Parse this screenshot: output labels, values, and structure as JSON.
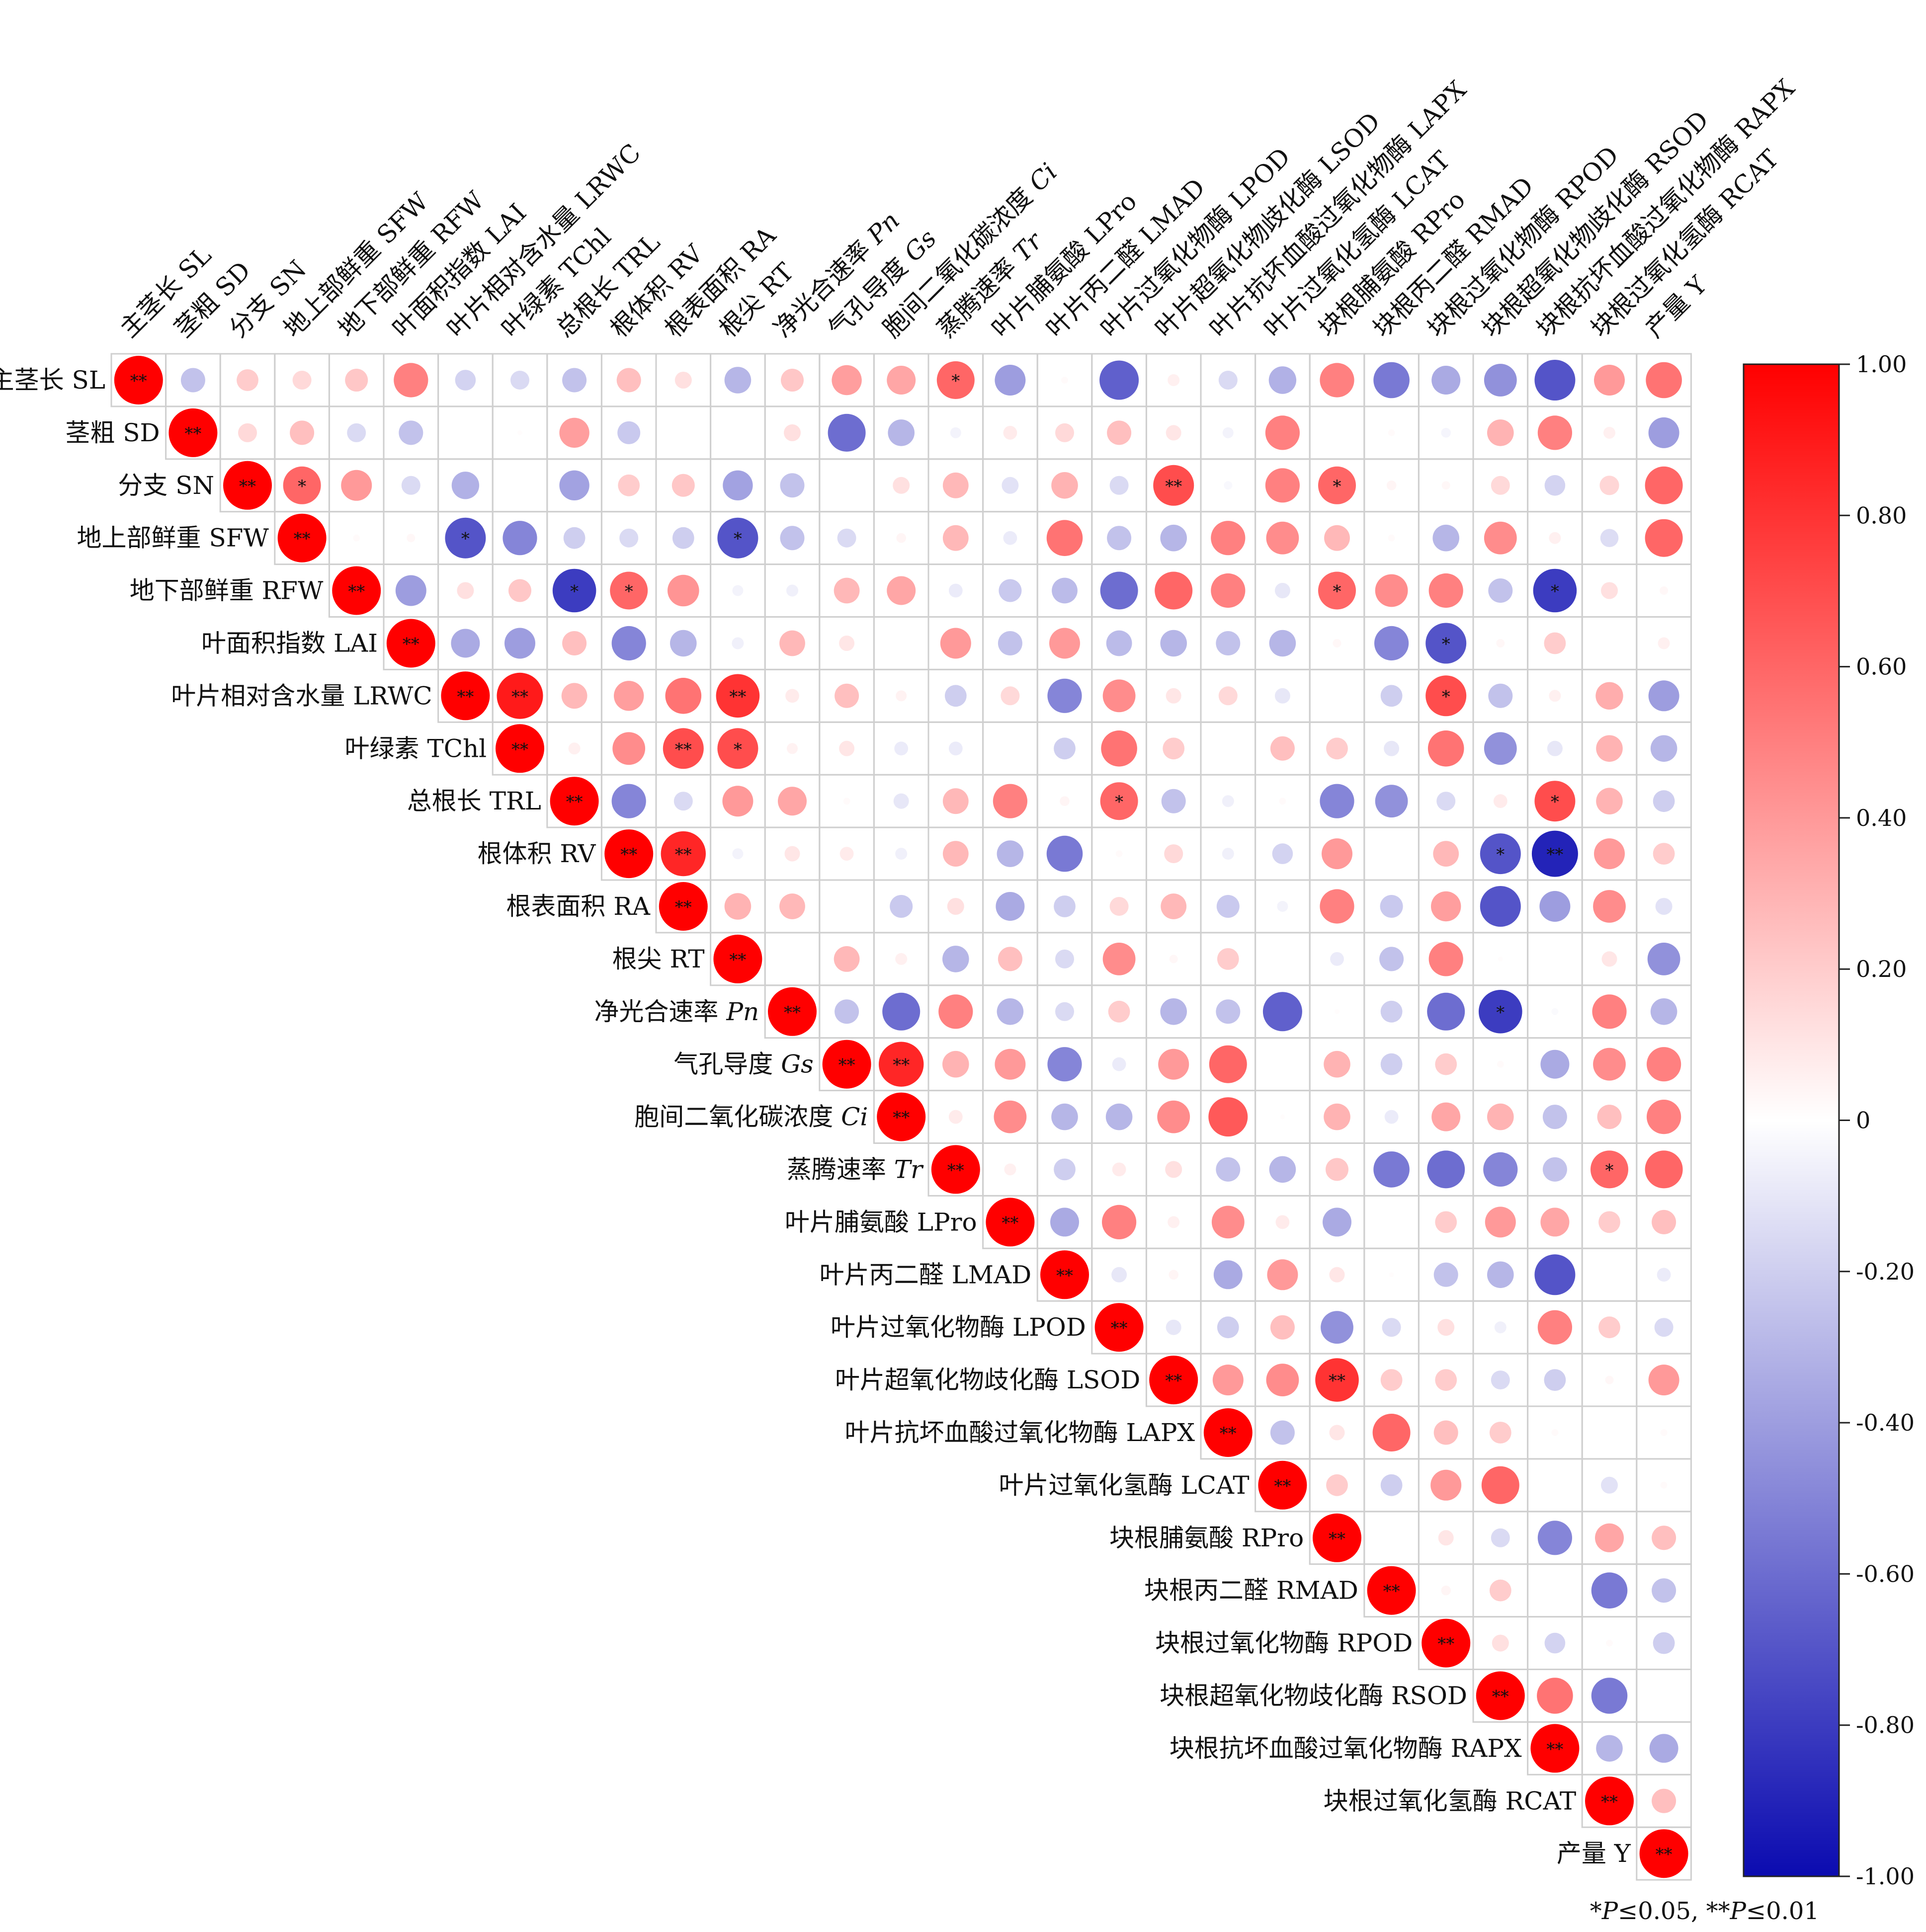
{
  "chart_data": {
    "type": "heatmap",
    "title": "",
    "variables": [
      {
        "name": "主茎长 SL",
        "prefix": "主茎长 ",
        "abbr": "SL",
        "italic": false
      },
      {
        "name": "茎粗 SD",
        "prefix": "茎粗 ",
        "abbr": "SD",
        "italic": false
      },
      {
        "name": "分支 SN",
        "prefix": "分支 ",
        "abbr": "SN",
        "italic": false
      },
      {
        "name": "地上部鲜重 SFW",
        "prefix": "地上部鲜重 ",
        "abbr": "SFW",
        "italic": false
      },
      {
        "name": "地下部鲜重 RFW",
        "prefix": "地下部鲜重 ",
        "abbr": "RFW",
        "italic": false
      },
      {
        "name": "叶面积指数 LAI",
        "prefix": "叶面积指数 ",
        "abbr": "LAI",
        "italic": false
      },
      {
        "name": "叶片相对含水量 LRWC",
        "prefix": "叶片相对含水量 ",
        "abbr": "LRWC",
        "italic": false
      },
      {
        "name": "叶绿素 TChl",
        "prefix": "叶绿素 ",
        "abbr": "TChl",
        "italic": false
      },
      {
        "name": "总根长 TRL",
        "prefix": "总根长 ",
        "abbr": "TRL",
        "italic": false
      },
      {
        "name": "根体积 RV",
        "prefix": "根体积 ",
        "abbr": "RV",
        "italic": false
      },
      {
        "name": "根表面积 RA",
        "prefix": "根表面积 ",
        "abbr": "RA",
        "italic": false
      },
      {
        "name": "根尖 RT",
        "prefix": "根尖 ",
        "abbr": "RT",
        "italic": false
      },
      {
        "name": "净光合速率 Pn",
        "prefix": "净光合速率 ",
        "abbr": "Pn",
        "italic": true
      },
      {
        "name": "气孔导度 Gs",
        "prefix": "气孔导度 ",
        "abbr": "Gs",
        "italic": true
      },
      {
        "name": "胞间二氧化碳浓度 Ci",
        "prefix": "胞间二氧化碳浓度 ",
        "abbr": "Ci",
        "italic": true
      },
      {
        "name": "蒸腾速率 Tr",
        "prefix": "蒸腾速率 ",
        "abbr": "Tr",
        "italic": true
      },
      {
        "name": "叶片脯氨酸 LPro",
        "prefix": "叶片脯氨酸 ",
        "abbr": "LPro",
        "italic": false
      },
      {
        "name": "叶片丙二醛 LMAD",
        "prefix": "叶片丙二醛 ",
        "abbr": "LMAD",
        "italic": false
      },
      {
        "name": "叶片过氧化物酶 LPOD",
        "prefix": "叶片过氧化物酶 ",
        "abbr": "LPOD",
        "italic": false
      },
      {
        "name": "叶片超氧化物歧化酶 LSOD",
        "prefix": "叶片超氧化物歧化酶 ",
        "abbr": "LSOD",
        "italic": false
      },
      {
        "name": "叶片抗坏血酸过氧化物酶 LAPX",
        "prefix": "叶片抗坏血酸过氧化物酶 ",
        "abbr": "LAPX",
        "italic": false
      },
      {
        "name": "叶片过氧化氢酶 LCAT",
        "prefix": "叶片过氧化氢酶 ",
        "abbr": "LCAT",
        "italic": false
      },
      {
        "name": "块根脯氨酸 RPro",
        "prefix": "块根脯氨酸 ",
        "abbr": "RPro",
        "italic": false
      },
      {
        "name": "块根丙二醛 RMAD",
        "prefix": "块根丙二醛 ",
        "abbr": "RMAD",
        "italic": false
      },
      {
        "name": "块根过氧化物酶 RPOD",
        "prefix": "块根过氧化物酶 ",
        "abbr": "RPOD",
        "italic": false
      },
      {
        "name": "块根超氧化物歧化酶 RSOD",
        "prefix": "块根超氧化物歧化酶 ",
        "abbr": "RSOD",
        "italic": false
      },
      {
        "name": "块根抗坏血酸过氧化物酶 RAPX",
        "prefix": "块根抗坏血酸过氧化物酶 ",
        "abbr": "RAPX",
        "italic": false
      },
      {
        "name": "块根过氧化氢酶 RCAT",
        "prefix": "块根过氧化氢酶 ",
        "abbr": "RCAT",
        "italic": false
      },
      {
        "name": "产量 Y",
        "prefix": "产量 ",
        "abbr": "Y",
        "italic": false
      }
    ],
    "correlations": [
      [
        1.0,
        -0.25,
        0.2,
        0.15,
        0.22,
        0.5,
        -0.18,
        -0.15,
        -0.25,
        0.25,
        0.12,
        -0.3,
        0.22,
        0.38,
        0.35,
        0.6,
        -0.4,
        0.02,
        -0.65,
        0.06,
        -0.15,
        -0.32,
        0.5,
        -0.55,
        -0.35,
        -0.45,
        -0.7,
        0.4,
        0.55
      ],
      [
        null,
        1.0,
        0.15,
        0.25,
        -0.15,
        -0.25,
        0,
        0.01,
        0.38,
        -0.22,
        0,
        0,
        0.12,
        -0.6,
        -0.3,
        -0.05,
        0.08,
        0.15,
        0.25,
        0.1,
        -0.05,
        0.5,
        0,
        0.02,
        -0.04,
        0.3,
        0.5,
        0.06,
        -0.4
      ],
      [
        null,
        null,
        1.0,
        0.6,
        0.4,
        -0.15,
        -0.32,
        0,
        -0.38,
        0.2,
        0.22,
        -0.38,
        -0.25,
        0,
        0.12,
        0.28,
        -0.12,
        0.3,
        -0.15,
        0.7,
        -0.03,
        0.5,
        0.6,
        0.04,
        0.03,
        0.15,
        -0.18,
        0.16,
        0.6
      ],
      [
        null,
        null,
        null,
        1.0,
        0.02,
        0.03,
        -0.7,
        -0.5,
        -0.2,
        -0.15,
        -0.2,
        -0.7,
        -0.25,
        -0.15,
        0.04,
        0.28,
        -0.08,
        0.55,
        -0.25,
        -0.3,
        0.5,
        0.45,
        0.28,
        0.02,
        -0.3,
        0.45,
        0.06,
        -0.14,
        0.6
      ],
      [
        null,
        null,
        null,
        null,
        1.0,
        -0.4,
        0.12,
        0.22,
        -0.8,
        0.6,
        0.42,
        -0.05,
        -0.06,
        0.28,
        0.35,
        -0.08,
        -0.22,
        -0.28,
        -0.6,
        0.6,
        0.5,
        -0.1,
        0.6,
        0.45,
        0.5,
        -0.25,
        -0.8,
        0.12,
        0.03
      ],
      [
        null,
        null,
        null,
        null,
        null,
        1.0,
        -0.35,
        -0.4,
        0.25,
        -0.5,
        -0.3,
        -0.06,
        0.28,
        0.1,
        0,
        0.4,
        -0.25,
        0.4,
        -0.28,
        -0.3,
        -0.25,
        -0.3,
        0.03,
        -0.5,
        -0.7,
        0.03,
        0.2,
        0,
        0.06
      ],
      [
        null,
        null,
        null,
        null,
        null,
        null,
        1.0,
        0.9,
        0.28,
        0.38,
        0.55,
        0.8,
        0.08,
        0.25,
        0.05,
        -0.2,
        0.15,
        -0.5,
        0.45,
        0.1,
        0.15,
        -0.1,
        0,
        -0.2,
        0.7,
        -0.25,
        0.06,
        0.32,
        -0.4
      ],
      [
        null,
        null,
        null,
        null,
        null,
        null,
        null,
        1.0,
        0.06,
        0.45,
        0.7,
        0.7,
        0.05,
        0.1,
        -0.08,
        -0.08,
        0,
        -0.2,
        0.55,
        0.2,
        0,
        0.25,
        0.2,
        -0.1,
        0.55,
        -0.45,
        -0.1,
        0.3,
        -0.3
      ],
      [
        null,
        null,
        null,
        null,
        null,
        null,
        null,
        null,
        1.0,
        -0.5,
        -0.15,
        0.4,
        0.35,
        0.02,
        -0.1,
        0.28,
        0.5,
        0.04,
        0.6,
        -0.25,
        -0.06,
        0.02,
        -0.5,
        -0.45,
        -0.15,
        0.08,
        0.7,
        0.3,
        -0.2
      ],
      [
        null,
        null,
        null,
        null,
        null,
        null,
        null,
        null,
        null,
        1.0,
        0.85,
        -0.05,
        0.1,
        0.08,
        -0.06,
        0.28,
        -0.3,
        -0.55,
        0.02,
        0.15,
        -0.06,
        -0.18,
        0.4,
        0,
        0.28,
        -0.7,
        -0.9,
        0.4,
        0.2
      ],
      [
        null,
        null,
        null,
        null,
        null,
        null,
        null,
        null,
        null,
        null,
        1.0,
        0.3,
        0.28,
        0,
        -0.22,
        0.12,
        -0.35,
        -0.2,
        0.15,
        0.28,
        -0.22,
        -0.05,
        0.5,
        -0.22,
        0.38,
        -0.7,
        -0.4,
        0.45,
        -0.12
      ],
      [
        null,
        null,
        null,
        null,
        null,
        null,
        null,
        null,
        null,
        null,
        null,
        1.0,
        0,
        0.28,
        0.06,
        -0.3,
        0.25,
        -0.15,
        0.45,
        0.03,
        0.2,
        0,
        -0.08,
        -0.25,
        0.5,
        0.01,
        0,
        0.1,
        -0.45
      ],
      [
        null,
        null,
        null,
        null,
        null,
        null,
        null,
        null,
        null,
        null,
        null,
        null,
        1.0,
        -0.25,
        -0.6,
        0.5,
        -0.3,
        -0.15,
        0.2,
        -0.3,
        -0.25,
        -0.65,
        0.01,
        -0.2,
        -0.6,
        -0.8,
        -0.02,
        0.5,
        -0.3
      ],
      [
        null,
        null,
        null,
        null,
        null,
        null,
        null,
        null,
        null,
        null,
        null,
        null,
        null,
        1.0,
        0.85,
        0.3,
        0.4,
        -0.5,
        -0.08,
        0.4,
        0.6,
        0,
        0.3,
        -0.2,
        0.2,
        0.02,
        -0.35,
        0.45,
        0.5
      ],
      [
        null,
        null,
        null,
        null,
        null,
        null,
        null,
        null,
        null,
        null,
        null,
        null,
        null,
        null,
        1.0,
        0.08,
        0.45,
        -0.3,
        -0.3,
        0.45,
        0.65,
        0.01,
        0.3,
        -0.08,
        0.35,
        0.3,
        -0.25,
        0.25,
        0.5
      ],
      [
        null,
        null,
        null,
        null,
        null,
        null,
        null,
        null,
        null,
        null,
        null,
        null,
        null,
        null,
        null,
        1.0,
        0.06,
        -0.2,
        0.08,
        0.12,
        -0.25,
        -0.3,
        0.22,
        -0.55,
        -0.6,
        -0.5,
        -0.25,
        0.6,
        0.6
      ],
      [
        null,
        null,
        null,
        null,
        null,
        null,
        null,
        null,
        null,
        null,
        null,
        null,
        null,
        null,
        null,
        null,
        1.0,
        -0.35,
        0.5,
        0.06,
        0.45,
        0.08,
        -0.35,
        0,
        0.2,
        0.4,
        0.35,
        0.2,
        0.25
      ],
      [
        null,
        null,
        null,
        null,
        null,
        null,
        null,
        null,
        null,
        null,
        null,
        null,
        null,
        null,
        null,
        null,
        null,
        1.0,
        -0.1,
        0.04,
        -0.35,
        0.4,
        0.1,
        0.01,
        -0.25,
        -0.3,
        -0.7,
        0,
        -0.08
      ],
      [
        null,
        null,
        null,
        null,
        null,
        null,
        null,
        null,
        null,
        null,
        null,
        null,
        null,
        null,
        null,
        null,
        null,
        null,
        1.0,
        -0.1,
        -0.2,
        0.25,
        -0.45,
        -0.15,
        0.12,
        -0.06,
        0.5,
        0.2,
        -0.15
      ],
      [
        null,
        null,
        null,
        null,
        null,
        null,
        null,
        null,
        null,
        null,
        null,
        null,
        null,
        null,
        null,
        null,
        null,
        null,
        null,
        1.0,
        0.4,
        0.45,
        0.8,
        0.2,
        0.2,
        -0.15,
        -0.2,
        0.03,
        0.4
      ],
      [
        null,
        null,
        null,
        null,
        null,
        null,
        null,
        null,
        null,
        null,
        null,
        null,
        null,
        null,
        null,
        null,
        null,
        null,
        null,
        null,
        1.0,
        -0.25,
        0.1,
        0.6,
        0.25,
        0.2,
        0.02,
        0,
        0.02
      ],
      [
        null,
        null,
        null,
        null,
        null,
        null,
        null,
        null,
        null,
        null,
        null,
        null,
        null,
        null,
        null,
        null,
        null,
        null,
        null,
        null,
        null,
        1.0,
        0.2,
        -0.2,
        0.4,
        0.6,
        0,
        -0.12,
        0.02
      ],
      [
        null,
        null,
        null,
        null,
        null,
        null,
        null,
        null,
        null,
        null,
        null,
        null,
        null,
        null,
        null,
        null,
        null,
        null,
        null,
        null,
        null,
        null,
        1.0,
        0,
        0.1,
        -0.15,
        -0.5,
        0.35,
        0.25
      ],
      [
        null,
        null,
        null,
        null,
        null,
        null,
        null,
        null,
        null,
        null,
        null,
        null,
        null,
        null,
        null,
        null,
        null,
        null,
        null,
        null,
        null,
        null,
        null,
        1.0,
        0.04,
        0.2,
        0,
        -0.55,
        -0.25
      ],
      [
        null,
        null,
        null,
        null,
        null,
        null,
        null,
        null,
        null,
        null,
        null,
        null,
        null,
        null,
        null,
        null,
        null,
        null,
        null,
        null,
        null,
        null,
        null,
        null,
        1.0,
        0.12,
        -0.18,
        0.02,
        -0.2
      ],
      [
        null,
        null,
        null,
        null,
        null,
        null,
        null,
        null,
        null,
        null,
        null,
        null,
        null,
        null,
        null,
        null,
        null,
        null,
        null,
        null,
        null,
        null,
        null,
        null,
        null,
        1.0,
        0.55,
        -0.55,
        0
      ],
      [
        null,
        null,
        null,
        null,
        null,
        null,
        null,
        null,
        null,
        null,
        null,
        null,
        null,
        null,
        null,
        null,
        null,
        null,
        null,
        null,
        null,
        null,
        null,
        null,
        null,
        null,
        1.0,
        -0.3,
        -0.35
      ],
      [
        null,
        null,
        null,
        null,
        null,
        null,
        null,
        null,
        null,
        null,
        null,
        null,
        null,
        null,
        null,
        null,
        null,
        null,
        null,
        null,
        null,
        null,
        null,
        null,
        null,
        null,
        null,
        1.0,
        0.25
      ],
      [
        null,
        null,
        null,
        null,
        null,
        null,
        null,
        null,
        null,
        null,
        null,
        null,
        null,
        null,
        null,
        null,
        null,
        null,
        null,
        null,
        null,
        null,
        null,
        null,
        null,
        null,
        null,
        null,
        1.0
      ]
    ],
    "significance": [
      {
        "row": 0,
        "col": 15,
        "mark": "*"
      },
      {
        "row": 2,
        "col": 3,
        "mark": "*"
      },
      {
        "row": 2,
        "col": 19,
        "mark": "**"
      },
      {
        "row": 2,
        "col": 22,
        "mark": "*"
      },
      {
        "row": 3,
        "col": 6,
        "mark": "*"
      },
      {
        "row": 3,
        "col": 11,
        "mark": "*"
      },
      {
        "row": 4,
        "col": 8,
        "mark": "*"
      },
      {
        "row": 4,
        "col": 9,
        "mark": "*"
      },
      {
        "row": 4,
        "col": 22,
        "mark": "*"
      },
      {
        "row": 4,
        "col": 26,
        "mark": "*"
      },
      {
        "row": 5,
        "col": 24,
        "mark": "*"
      },
      {
        "row": 6,
        "col": 7,
        "mark": "**"
      },
      {
        "row": 6,
        "col": 11,
        "mark": "**"
      },
      {
        "row": 6,
        "col": 24,
        "mark": "*"
      },
      {
        "row": 7,
        "col": 10,
        "mark": "**"
      },
      {
        "row": 7,
        "col": 11,
        "mark": "*"
      },
      {
        "row": 8,
        "col": 18,
        "mark": "*"
      },
      {
        "row": 8,
        "col": 26,
        "mark": "*"
      },
      {
        "row": 9,
        "col": 10,
        "mark": "**"
      },
      {
        "row": 9,
        "col": 25,
        "mark": "*"
      },
      {
        "row": 9,
        "col": 26,
        "mark": "**"
      },
      {
        "row": 12,
        "col": 25,
        "mark": "*"
      },
      {
        "row": 13,
        "col": 14,
        "mark": "**"
      },
      {
        "row": 15,
        "col": 27,
        "mark": "*"
      },
      {
        "row": 19,
        "col": 22,
        "mark": "**"
      }
    ],
    "diagonal_mark": "**",
    "colorbar": {
      "range": [
        -1.0,
        1.0
      ],
      "ticks": [
        "1.00",
        "0.80",
        "0.60",
        "0.40",
        "0.20",
        "0",
        "-0.20",
        "-0.40",
        "-0.60",
        "-0.80",
        "-1.00"
      ],
      "colors": {
        "negative": "#0b0bb0",
        "zero": "#ffffff",
        "positive": "#ff0000"
      }
    },
    "footnote": "*P≤0.05, **P≤0.01"
  }
}
